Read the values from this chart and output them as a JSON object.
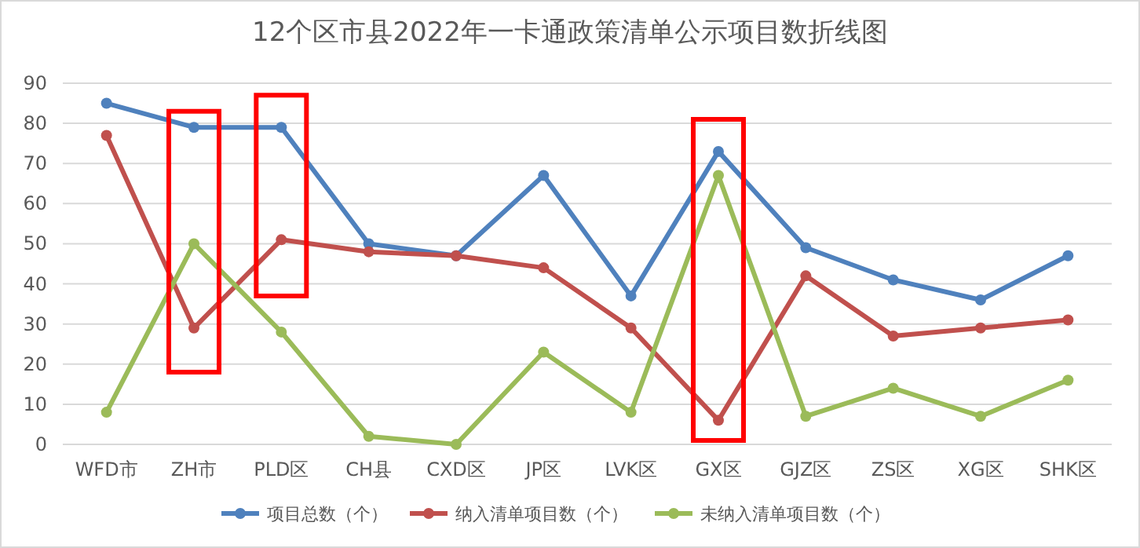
{
  "chart_data": {
    "type": "line",
    "title": "12个区市县2022年一卡通政策清单公示项目数折线图",
    "categories": [
      "WFD市",
      "ZH市",
      "PLD区",
      "CH县",
      "CXD区",
      "JP区",
      "LVK区",
      "GX区",
      "GJZ区",
      "ZS区",
      "XG区",
      "SHK区"
    ],
    "series": [
      {
        "name": "项目总数（个）",
        "color": "#4f81bd",
        "values": [
          85,
          79,
          79,
          50,
          47,
          67,
          37,
          73,
          49,
          41,
          36,
          47
        ]
      },
      {
        "name": "纳入清单项目数（个）",
        "color": "#c0504d",
        "values": [
          77,
          29,
          51,
          48,
          47,
          44,
          29,
          6,
          42,
          27,
          29,
          31
        ]
      },
      {
        "name": "未纳入清单项目数（个）",
        "color": "#9bbb59",
        "values": [
          8,
          50,
          28,
          2,
          0,
          23,
          8,
          67,
          7,
          14,
          7,
          16
        ]
      }
    ],
    "ylim": [
      0,
      90
    ],
    "yticks": [
      0,
      10,
      20,
      30,
      40,
      50,
      60,
      70,
      80,
      90
    ],
    "grid": "y",
    "legend": "bottom",
    "marker": "circle",
    "line_style": "solid"
  }
}
